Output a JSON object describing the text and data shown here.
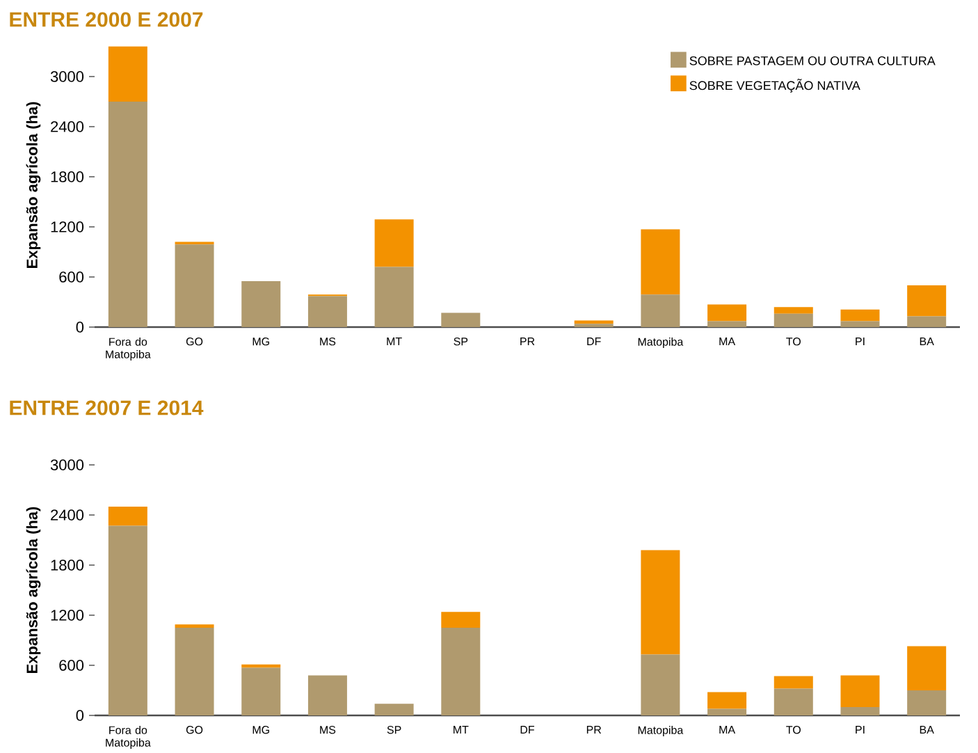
{
  "chart_data": [
    {
      "type": "bar",
      "title": "ENTRE 2000 E 2007",
      "ylabel": "Expansão agrícola (ha)",
      "stacked": true,
      "categories": [
        "Fora do Matopiba",
        "GO",
        "MG",
        "MS",
        "MT",
        "SP",
        "PR",
        "DF",
        "Matopiba",
        "MA",
        "TO",
        "PI",
        "BA"
      ],
      "series": [
        {
          "name": "SOBRE PASTAGEM OU OUTRA CULTURA",
          "color": "#b09a6e",
          "values": [
            2700,
            990,
            550,
            370,
            720,
            170,
            0,
            40,
            390,
            70,
            160,
            70,
            130
          ]
        },
        {
          "name": "SOBRE VEGETAÇÃO NATIVA",
          "color": "#f39200",
          "values": [
            660,
            30,
            0,
            20,
            570,
            0,
            0,
            40,
            780,
            200,
            80,
            140,
            370
          ]
        }
      ],
      "ylim": [
        0,
        3400
      ],
      "yticks": [
        0,
        600,
        1200,
        1800,
        2400,
        3000
      ],
      "legend": "top right",
      "grid": false
    },
    {
      "type": "bar",
      "title": "ENTRE 2007 E 2014",
      "ylabel": "Expansão agrícola (ha)",
      "stacked": true,
      "categories": [
        "Fora do Matopiba",
        "GO",
        "MG",
        "MS",
        "SP",
        "MT",
        "DF",
        "PR",
        "Matopiba",
        "MA",
        "TO",
        "PI",
        "BA"
      ],
      "series": [
        {
          "color": "#b09a6e",
          "values": [
            2270,
            1050,
            570,
            480,
            140,
            1050,
            0,
            0,
            730,
            80,
            320,
            100,
            300
          ]
        },
        {
          "color": "#f39200",
          "values": [
            230,
            40,
            40,
            0,
            0,
            190,
            0,
            0,
            1250,
            200,
            150,
            380,
            530
          ]
        }
      ],
      "ylim": [
        0,
        3000
      ],
      "yticks": [
        0,
        600,
        1200,
        1800,
        2400,
        3000
      ],
      "legend": false,
      "grid": false
    }
  ]
}
